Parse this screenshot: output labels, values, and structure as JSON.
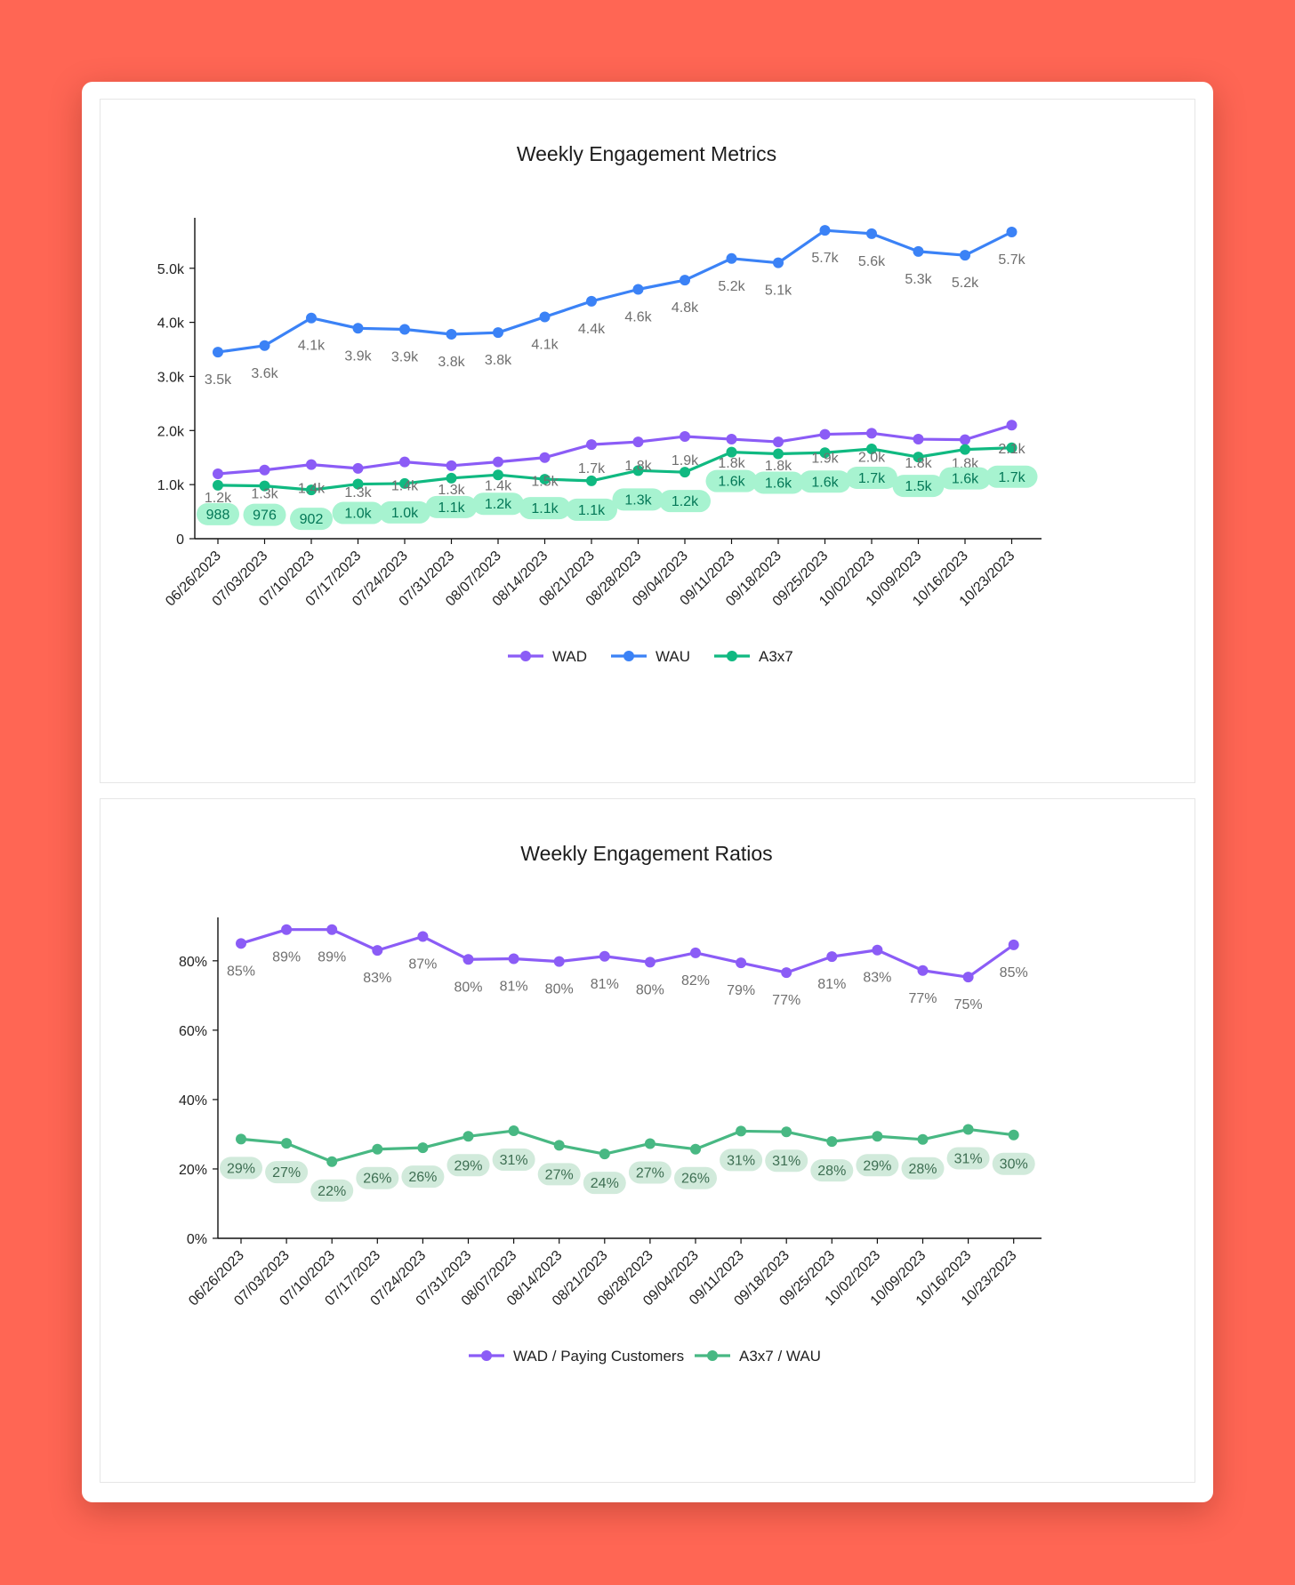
{
  "chart_data": [
    {
      "type": "line",
      "title": "Weekly Engagement Metrics",
      "categories": [
        "06/26/2023",
        "07/03/2023",
        "07/10/2023",
        "07/17/2023",
        "07/24/2023",
        "07/31/2023",
        "08/07/2023",
        "08/14/2023",
        "08/21/2023",
        "08/28/2023",
        "09/04/2023",
        "09/11/2023",
        "09/18/2023",
        "09/25/2023",
        "10/02/2023",
        "10/09/2023",
        "10/16/2023",
        "10/23/2023"
      ],
      "ylim": [
        0,
        5900
      ],
      "yticks": [
        0,
        1000,
        2000,
        3000,
        4000,
        5000
      ],
      "ytick_labels": [
        "0",
        "1.0k",
        "2.0k",
        "3.0k",
        "4.0k",
        "5.0k"
      ],
      "legend_position": "bottom",
      "series": [
        {
          "name": "WAD",
          "color": "#8b5cf6",
          "label_style": "plain",
          "values": [
            1200,
            1270,
            1370,
            1300,
            1420,
            1350,
            1420,
            1500,
            1740,
            1790,
            1890,
            1840,
            1790,
            1930,
            1950,
            1840,
            1830,
            2100
          ],
          "labels": [
            "1.2k",
            "1.3k",
            "1.4k",
            "1.3k",
            "1.4k",
            "1.3k",
            "1.4k",
            "1.5k",
            "1.7k",
            "1.8k",
            "1.9k",
            "1.8k",
            "1.8k",
            "1.9k",
            "2.0k",
            "1.8k",
            "1.8k",
            "2.1k"
          ]
        },
        {
          "name": "WAU",
          "color": "#3b82f6",
          "label_style": "plain",
          "values": [
            3450,
            3570,
            4080,
            3890,
            3870,
            3780,
            3810,
            4100,
            4390,
            4610,
            4780,
            5180,
            5100,
            5700,
            5640,
            5310,
            5240,
            5670
          ],
          "labels": [
            "3.5k",
            "3.6k",
            "4.1k",
            "3.9k",
            "3.9k",
            "3.8k",
            "3.8k",
            "4.1k",
            "4.4k",
            "4.6k",
            "4.8k",
            "5.2k",
            "5.1k",
            "5.7k",
            "5.6k",
            "5.3k",
            "5.2k",
            "5.7k"
          ]
        },
        {
          "name": "A3x7",
          "color": "#10b981",
          "label_style": "pill",
          "pill_fill": "#a7f3d0",
          "pill_text_color": "#047857",
          "values": [
            988,
            976,
            902,
            1010,
            1020,
            1120,
            1180,
            1100,
            1070,
            1260,
            1230,
            1600,
            1570,
            1590,
            1660,
            1510,
            1650,
            1680
          ],
          "labels": [
            "988",
            "976",
            "902",
            "1.0k",
            "1.0k",
            "1.1k",
            "1.2k",
            "1.1k",
            "1.1k",
            "1.3k",
            "1.2k",
            "1.6k",
            "1.6k",
            "1.6k",
            "1.7k",
            "1.5k",
            "1.6k",
            "1.7k"
          ]
        }
      ]
    },
    {
      "type": "line",
      "title": "Weekly Engagement Ratios",
      "categories": [
        "06/26/2023",
        "07/03/2023",
        "07/10/2023",
        "07/17/2023",
        "07/24/2023",
        "07/31/2023",
        "08/07/2023",
        "08/14/2023",
        "08/21/2023",
        "08/28/2023",
        "09/04/2023",
        "09/11/2023",
        "09/18/2023",
        "09/25/2023",
        "10/02/2023",
        "10/09/2023",
        "10/16/2023",
        "10/23/2023"
      ],
      "ylim": [
        0,
        92
      ],
      "yticks": [
        0,
        20,
        40,
        60,
        80
      ],
      "ytick_labels": [
        "0%",
        "20%",
        "40%",
        "60%",
        "80%"
      ],
      "legend_position": "bottom",
      "series": [
        {
          "name": "WAD / Paying Customers",
          "color": "#8b5cf6",
          "label_style": "plain",
          "values": [
            85,
            89,
            89,
            83,
            87,
            80.4,
            80.6,
            79.8,
            81.3,
            79.6,
            82.3,
            79.4,
            76.6,
            81.2,
            83.1,
            77.2,
            75.3,
            84.6
          ],
          "labels": [
            "85%",
            "89%",
            "89%",
            "83%",
            "87%",
            "80%",
            "81%",
            "80%",
            "81%",
            "80%",
            "82%",
            "79%",
            "77%",
            "81%",
            "83%",
            "77%",
            "75%",
            "85%"
          ]
        },
        {
          "name": "A3x7 / WAU",
          "color": "#48b883",
          "label_style": "pill",
          "pill_fill": "#d1eadb",
          "pill_text_color": "#3d6e52",
          "values": [
            28.6,
            27.4,
            22.1,
            25.7,
            26.1,
            29.4,
            31,
            26.8,
            24.3,
            27.3,
            25.7,
            30.9,
            30.7,
            27.9,
            29.4,
            28.5,
            31.4,
            29.8
          ],
          "labels": [
            "29%",
            "27%",
            "22%",
            "26%",
            "26%",
            "29%",
            "31%",
            "27%",
            "24%",
            "27%",
            "26%",
            "31%",
            "31%",
            "28%",
            "29%",
            "28%",
            "31%",
            "30%"
          ]
        }
      ]
    }
  ]
}
